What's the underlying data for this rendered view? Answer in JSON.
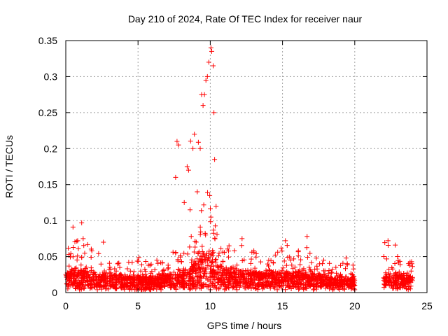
{
  "chart_data": {
    "type": "scatter",
    "title": "Day 210 of 2024, Rate Of TEC Index for receiver naur",
    "xlabel": "GPS time / hours",
    "ylabel": "ROTI / TECUs",
    "xlim": [
      0,
      25
    ],
    "ylim": [
      0,
      0.35
    ],
    "xticks": [
      0,
      5,
      10,
      15,
      20,
      25
    ],
    "xtick_labels": [
      "0",
      "5",
      "10",
      "15",
      "20",
      "25"
    ],
    "yticks": [
      0,
      0.05,
      0.1,
      0.15,
      0.2,
      0.25,
      0.3,
      0.35
    ],
    "ytick_labels": [
      "0",
      "0.05",
      "0.1",
      "0.15",
      "0.2",
      "0.25",
      "0.3",
      "0.35"
    ],
    "grid": true,
    "marker": "+",
    "color": "#ff0000",
    "data_gap_hours": [
      20.0,
      22.0
    ],
    "envelope": {
      "x": [
        0,
        0.3,
        0.5,
        1.0,
        2.0,
        3.0,
        4.0,
        5.0,
        6.0,
        7.0,
        7.6,
        8.0,
        8.5,
        9.0,
        9.5,
        9.8,
        10.0,
        10.2,
        10.5,
        11.0,
        12.0,
        13.0,
        14.0,
        15.0,
        16.0,
        16.7,
        17.5,
        18.5,
        19.5,
        20.0,
        22.0,
        22.5,
        23.0,
        24.0
      ],
      "median": [
        0.02,
        0.022,
        0.025,
        0.022,
        0.02,
        0.019,
        0.018,
        0.017,
        0.017,
        0.019,
        0.02,
        0.022,
        0.026,
        0.032,
        0.04,
        0.045,
        0.045,
        0.04,
        0.03,
        0.026,
        0.024,
        0.022,
        0.021,
        0.021,
        0.021,
        0.02,
        0.018,
        0.016,
        0.015,
        0.015,
        0.018,
        0.02,
        0.019,
        0.017
      ],
      "peak": [
        0.05,
        0.09,
        0.07,
        0.097,
        0.06,
        0.045,
        0.045,
        0.05,
        0.045,
        0.05,
        0.21,
        0.12,
        0.23,
        0.25,
        0.28,
        0.3,
        0.34,
        0.25,
        0.1,
        0.07,
        0.07,
        0.06,
        0.05,
        0.072,
        0.06,
        0.075,
        0.05,
        0.04,
        0.045,
        0.04,
        0.07,
        0.07,
        0.05,
        0.045
      ]
    },
    "notable_points": [
      {
        "x": 0.5,
        "y": 0.091
      },
      {
        "x": 1.1,
        "y": 0.097
      },
      {
        "x": 1.2,
        "y": 0.075
      },
      {
        "x": 1.8,
        "y": 0.058
      },
      {
        "x": 2.6,
        "y": 0.07
      },
      {
        "x": 7.6,
        "y": 0.16
      },
      {
        "x": 7.7,
        "y": 0.21
      },
      {
        "x": 7.8,
        "y": 0.205
      },
      {
        "x": 8.2,
        "y": 0.125
      },
      {
        "x": 8.4,
        "y": 0.175
      },
      {
        "x": 8.5,
        "y": 0.17
      },
      {
        "x": 8.6,
        "y": 0.115
      },
      {
        "x": 8.8,
        "y": 0.2
      },
      {
        "x": 8.9,
        "y": 0.22
      },
      {
        "x": 9.1,
        "y": 0.14
      },
      {
        "x": 9.3,
        "y": 0.2
      },
      {
        "x": 9.4,
        "y": 0.275
      },
      {
        "x": 9.5,
        "y": 0.26
      },
      {
        "x": 9.6,
        "y": 0.275
      },
      {
        "x": 9.7,
        "y": 0.295
      },
      {
        "x": 9.8,
        "y": 0.3
      },
      {
        "x": 9.9,
        "y": 0.32
      },
      {
        "x": 10.05,
        "y": 0.34
      },
      {
        "x": 10.1,
        "y": 0.335
      },
      {
        "x": 10.2,
        "y": 0.315
      },
      {
        "x": 10.25,
        "y": 0.25
      },
      {
        "x": 10.3,
        "y": 0.185
      },
      {
        "x": 10.4,
        "y": 0.12
      },
      {
        "x": 11.3,
        "y": 0.065
      },
      {
        "x": 12.2,
        "y": 0.075
      },
      {
        "x": 15.2,
        "y": 0.072
      },
      {
        "x": 16.1,
        "y": 0.058
      },
      {
        "x": 16.7,
        "y": 0.078
      },
      {
        "x": 19.4,
        "y": 0.048
      },
      {
        "x": 22.3,
        "y": 0.072
      },
      {
        "x": 22.8,
        "y": 0.066
      }
    ]
  }
}
